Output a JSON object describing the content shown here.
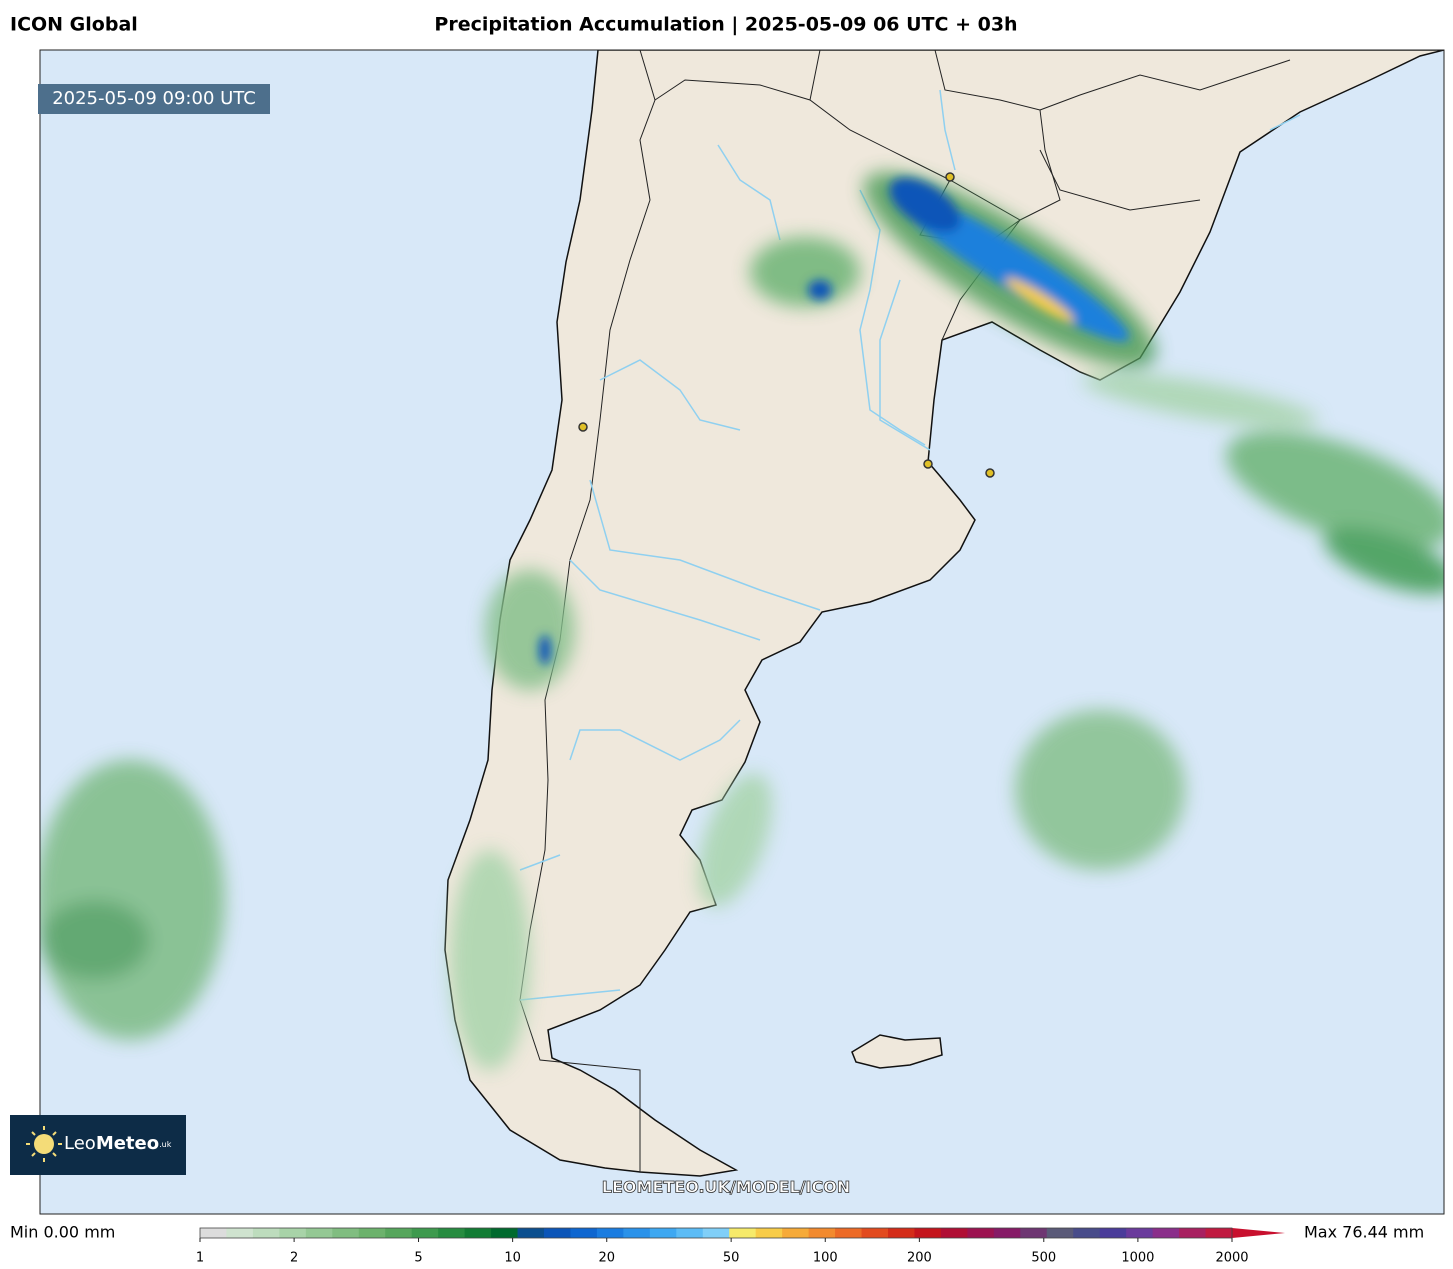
{
  "header": {
    "model": "ICON Global",
    "title": "Precipitation Accumulation | 2025-05-09 06 UTC + 03h"
  },
  "map": {
    "timestamp": "2025-05-09 09:00 UTC",
    "watermark": "LEOMETEO.UK/MODEL/ICON",
    "logo": {
      "leo": "Leo",
      "meteo": "Meteo",
      "suffix": ".uk"
    }
  },
  "colorbar": {
    "min_label": "Min 0.00 mm",
    "max_label": "Max 76.44 mm",
    "scale": "log",
    "lim": [
      1,
      2000
    ],
    "ticks": [
      1,
      2,
      5,
      10,
      20,
      50,
      100,
      200,
      500,
      1000,
      2000
    ],
    "colors": [
      "#dcdcdc",
      "#cfe3cf",
      "#bddcbd",
      "#a8d3a8",
      "#94c894",
      "#80bd80",
      "#6cb26c",
      "#56a65c",
      "#3e9a4e",
      "#278c40",
      "#127c34",
      "#006a2e",
      "#0b4f8f",
      "#0b55b8",
      "#0e66d0",
      "#1a7ce0",
      "#2a92ea",
      "#3ea8f2",
      "#5cbcf6",
      "#80cff8",
      "#f6ea6a",
      "#f8cc48",
      "#f6aa38",
      "#f28a2e",
      "#ec6a26",
      "#e24a1e",
      "#d42c18",
      "#c4141c",
      "#b00e34",
      "#9c1250",
      "#861a66",
      "#6e3672",
      "#5a5a78",
      "#484c8a",
      "#4a3c9a",
      "#6a3a9c",
      "#8a2e8a",
      "#a82060",
      "#c01a40"
    ],
    "arrow_color": "#c8102e"
  }
}
